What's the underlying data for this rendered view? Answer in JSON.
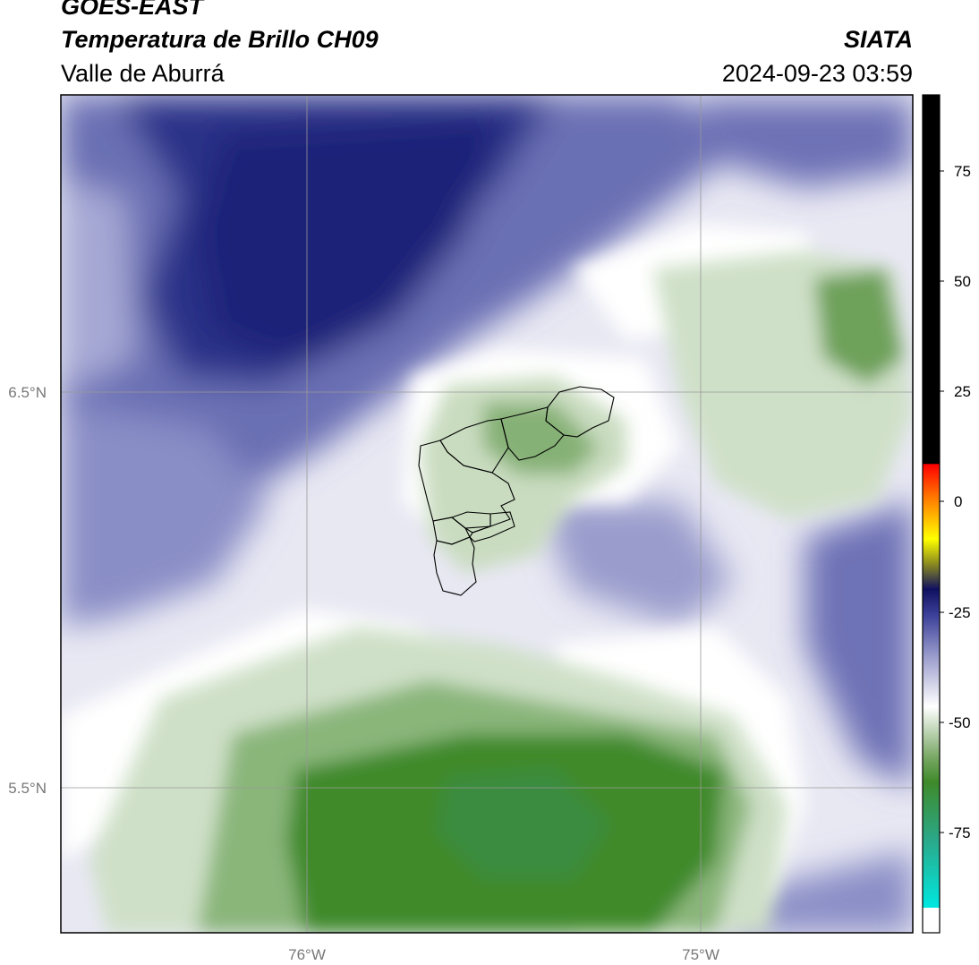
{
  "header": {
    "satellite": "GOES-EAST",
    "product": "Temperatura de Brillo CH09",
    "region": "Valle de Aburrá",
    "organization": "SIATA",
    "datetime": "2024-09-23 03:59"
  },
  "map": {
    "lat_labels": [
      "6.5°N",
      "5.5°N"
    ],
    "lon_labels": [
      "76°W",
      "75°W"
    ]
  },
  "colorbar": {
    "tick_labels": [
      "75",
      "50",
      "25",
      "0",
      "-25",
      "-50",
      "-75"
    ],
    "colors": {
      "top": "#000000",
      "warm": [
        "#ff0000",
        "#ff6600",
        "#ffcc00",
        "#ffff00"
      ],
      "mid": [
        "#808020",
        "#000080",
        "#4040a0",
        "#8888c0",
        "#ffffff"
      ],
      "cold": [
        "#cfe0c8",
        "#7fae6c",
        "#3f8a2a",
        "#2aa98a",
        "#00e0d8",
        "#ffffff"
      ]
    }
  },
  "colors": {
    "deep_blue": "#1c2278",
    "blue": "#3a3f98",
    "light_blue": "#8e92c6",
    "pale": "#e6e6f2",
    "white": "#ffffff",
    "pale_green": "#d6e4cf",
    "green": "#7aa866",
    "dark_green": "#3f8a2a"
  }
}
